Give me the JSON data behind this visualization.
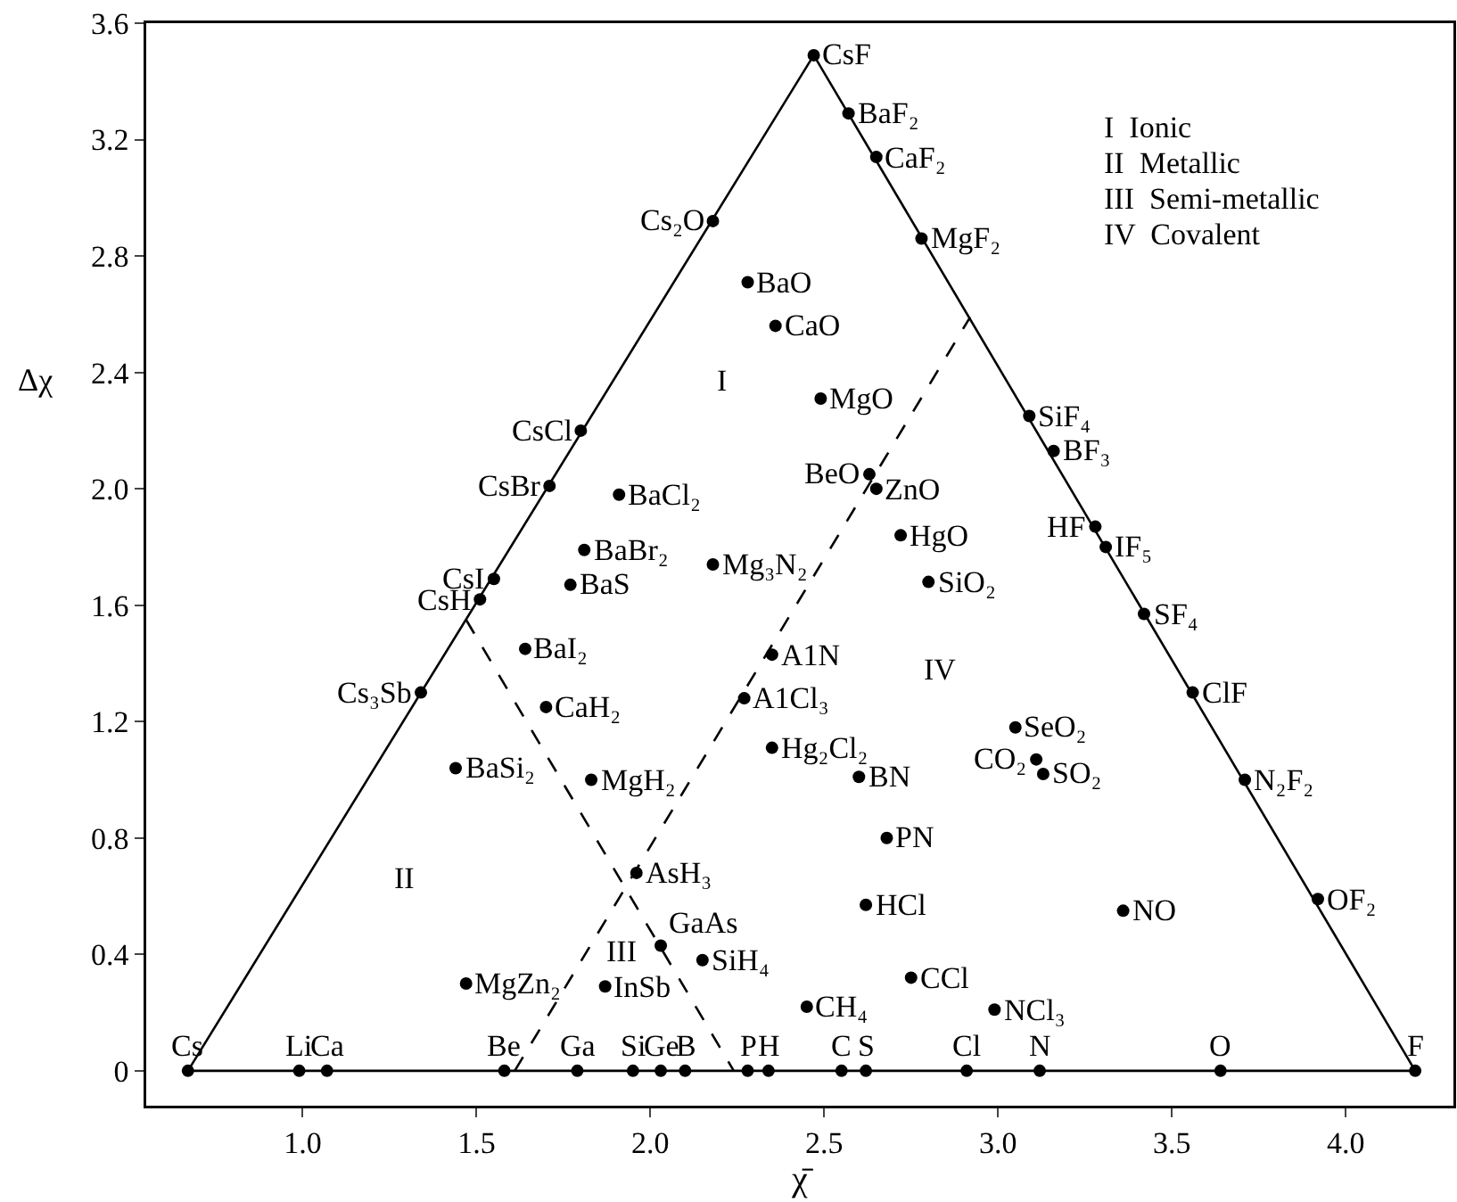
{
  "chart_data": {
    "type": "scatter",
    "xlabel": "χ̄",
    "ylabel": "Δχ",
    "xlim": [
      0.55,
      4.31
    ],
    "ylim": [
      -0.12,
      3.6
    ],
    "xticks": [
      {
        "value": 1,
        "label": "1.0"
      },
      1.5,
      {
        "value": 2,
        "label": "2.0"
      },
      2.5,
      {
        "value": 3,
        "label": "3.0"
      },
      3.5,
      {
        "value": 4,
        "label": "4.0"
      }
    ],
    "yticks": [
      0,
      0.4,
      0.8,
      1.2,
      1.6,
      {
        "value": 2,
        "label": "2.0"
      },
      2.4,
      2.8,
      3.2,
      3.6
    ],
    "grid": false,
    "series": [
      {
        "marker": "circle",
        "color": "#000000",
        "x": [
          0.67,
          0.99,
          1.07,
          1.58,
          1.79,
          1.95,
          2.03,
          2.1,
          2.28,
          2.34,
          2.55,
          2.62,
          2.91,
          3.12,
          3.64,
          4.2,
          2.47,
          2.57,
          2.65,
          2.78,
          2.18,
          2.28,
          2.36,
          2.49,
          1.8,
          1.71,
          1.91,
          1.81,
          2.18,
          1.55,
          1.51,
          1.77,
          1.64,
          1.34,
          1.7,
          1.44,
          1.83,
          3.09,
          3.16,
          2.63,
          2.65,
          3.28,
          3.31,
          2.72,
          2.8,
          3.42,
          2.35,
          2.27,
          3.56,
          3.05,
          2.35,
          3.11,
          3.13,
          2.6,
          3.71,
          2.68,
          2.62,
          3.36,
          3.92,
          2.75,
          2.45,
          2.99,
          1.96,
          2.03,
          2.15,
          1.47,
          1.87
        ],
        "values": [
          0,
          0,
          0,
          0,
          0,
          0,
          0,
          0,
          0,
          0,
          0,
          0,
          0,
          0,
          0,
          0,
          3.49,
          3.29,
          3.14,
          2.86,
          2.92,
          2.71,
          2.56,
          2.31,
          2.2,
          2.01,
          1.98,
          1.79,
          1.74,
          1.69,
          1.62,
          1.67,
          1.45,
          1.3,
          1.25,
          1.04,
          1,
          2.25,
          2.13,
          2.05,
          2,
          1.87,
          1.8,
          1.84,
          1.68,
          1.57,
          1.43,
          1.28,
          1.3,
          1.18,
          1.11,
          1.07,
          1.02,
          1.01,
          1,
          0.8,
          0.57,
          0.55,
          0.59,
          0.32,
          0.22,
          0.21,
          0.68,
          0.43,
          0.38,
          0.3,
          0.29
        ]
      },
      {
        "type": "line",
        "marker": "none",
        "color": "#000000",
        "line_style": "solid",
        "x": [
          0.67,
          2.47,
          4.2
        ],
        "values": [
          0,
          3.49,
          0
        ]
      },
      {
        "type": "line",
        "marker": "none",
        "color": "#000000",
        "line_style": "solid",
        "x": [
          0.67,
          4.2
        ],
        "values": [
          0,
          0
        ]
      },
      {
        "type": "line",
        "marker": "none",
        "color": "#000000",
        "line_style": "dashed",
        "x": [
          1.47,
          2.24
        ],
        "values": [
          1.55,
          0
        ]
      },
      {
        "type": "line",
        "marker": "none",
        "color": "#000000",
        "line_style": "dashed",
        "x": [
          1.61,
          2.92
        ],
        "values": [
          0,
          2.59
        ]
      }
    ],
    "annotations": [
      {
        "text": "Cs",
        "x": 0.67,
        "y": 0
      },
      {
        "text": "Li",
        "x": 0.99,
        "y": 0
      },
      {
        "text": "Ca",
        "x": 1.07,
        "y": 0
      },
      {
        "text": "Be",
        "x": 1.58,
        "y": 0
      },
      {
        "text": "Ga",
        "x": 1.79,
        "y": 0
      },
      {
        "text": "Si",
        "x": 1.95,
        "y": 0
      },
      {
        "text": "Ge",
        "x": 2.03,
        "y": 0
      },
      {
        "text": "B",
        "x": 2.1,
        "y": 0
      },
      {
        "text": "P",
        "x": 2.28,
        "y": 0
      },
      {
        "text": "H",
        "x": 2.34,
        "y": 0
      },
      {
        "text": "C",
        "x": 2.55,
        "y": 0
      },
      {
        "text": "S",
        "x": 2.62,
        "y": 0
      },
      {
        "text": "Cl",
        "x": 2.91,
        "y": 0
      },
      {
        "text": "N",
        "x": 3.12,
        "y": 0
      },
      {
        "text": "O",
        "x": 3.64,
        "y": 0
      },
      {
        "text": "F",
        "x": 4.2,
        "y": 0
      },
      {
        "text": "CsF",
        "x": 2.47,
        "y": 3.49
      },
      {
        "text": "BaF₂",
        "x": 2.57,
        "y": 3.29
      },
      {
        "text": "CaF₂",
        "x": 2.65,
        "y": 3.14
      },
      {
        "text": "MgF₂",
        "x": 2.78,
        "y": 2.86
      },
      {
        "text": "Cs₂O",
        "x": 2.18,
        "y": 2.92
      },
      {
        "text": "BaO",
        "x": 2.28,
        "y": 2.71
      },
      {
        "text": "CaO",
        "x": 2.36,
        "y": 2.56
      },
      {
        "text": "MgO",
        "x": 2.49,
        "y": 2.31
      },
      {
        "text": "CsCl",
        "x": 1.8,
        "y": 2.2
      },
      {
        "text": "CsBr",
        "x": 1.71,
        "y": 2.01
      },
      {
        "text": "BaCl₂",
        "x": 1.91,
        "y": 1.98
      },
      {
        "text": "BaBr₂",
        "x": 1.81,
        "y": 1.79
      },
      {
        "text": "Mg₃N₂",
        "x": 2.18,
        "y": 1.74
      },
      {
        "text": "CsI",
        "x": 1.55,
        "y": 1.69
      },
      {
        "text": "CsH",
        "x": 1.51,
        "y": 1.62
      },
      {
        "text": "BaS",
        "x": 1.77,
        "y": 1.67
      },
      {
        "text": "BaI₂",
        "x": 1.64,
        "y": 1.45
      },
      {
        "text": "Cs₃Sb",
        "x": 1.34,
        "y": 1.3
      },
      {
        "text": "CaH₂",
        "x": 1.7,
        "y": 1.25
      },
      {
        "text": "BaSi₂",
        "x": 1.44,
        "y": 1.04
      },
      {
        "text": "MgH₂",
        "x": 1.83,
        "y": 1
      },
      {
        "text": "SiF₄",
        "x": 3.09,
        "y": 2.25
      },
      {
        "text": "BF₃",
        "x": 3.16,
        "y": 2.13
      },
      {
        "text": "BeO",
        "x": 2.63,
        "y": 2.05
      },
      {
        "text": "ZnO",
        "x": 2.65,
        "y": 2
      },
      {
        "text": "HF",
        "x": 3.28,
        "y": 1.87
      },
      {
        "text": "IF₅",
        "x": 3.31,
        "y": 1.8
      },
      {
        "text": "HgO",
        "x": 2.72,
        "y": 1.84
      },
      {
        "text": "SiO₂",
        "x": 2.8,
        "y": 1.68
      },
      {
        "text": "SF₄",
        "x": 3.42,
        "y": 1.57
      },
      {
        "text": "A1N",
        "x": 2.35,
        "y": 1.43
      },
      {
        "text": "A1Cl₃",
        "x": 2.27,
        "y": 1.28
      },
      {
        "text": "ClF",
        "x": 3.56,
        "y": 1.3
      },
      {
        "text": "SeO₂",
        "x": 3.05,
        "y": 1.18
      },
      {
        "text": "Hg₂Cl₂",
        "x": 2.35,
        "y": 1.11
      },
      {
        "text": "CO₂",
        "x": 3.11,
        "y": 1.07
      },
      {
        "text": "SO₂",
        "x": 3.13,
        "y": 1.02
      },
      {
        "text": "BN",
        "x": 2.6,
        "y": 1.01
      },
      {
        "text": "N₂F₂",
        "x": 3.71,
        "y": 1
      },
      {
        "text": "PN",
        "x": 2.68,
        "y": 0.8
      },
      {
        "text": "HCl",
        "x": 2.62,
        "y": 0.57
      },
      {
        "text": "NO",
        "x": 3.36,
        "y": 0.55
      },
      {
        "text": "OF₂",
        "x": 3.92,
        "y": 0.59
      },
      {
        "text": "CCl",
        "x": 2.75,
        "y": 0.32
      },
      {
        "text": "CH₄",
        "x": 2.45,
        "y": 0.22
      },
      {
        "text": "NCl₃",
        "x": 2.99,
        "y": 0.21
      },
      {
        "text": "AsH₃",
        "x": 1.96,
        "y": 0.68
      },
      {
        "text": "GaAs",
        "x": 2.03,
        "y": 0.43
      },
      {
        "text": "SiH₄",
        "x": 2.15,
        "y": 0.38
      },
      {
        "text": "MgZn₂",
        "x": 1.47,
        "y": 0.3
      },
      {
        "text": "InSb",
        "x": 1.87,
        "y": 0.29
      },
      "I",
      "II",
      "III",
      "IV",
      "I  Ionic",
      "II  Metallic",
      "III  Semi-metallic",
      "IV  Covalent"
    ]
  }
}
